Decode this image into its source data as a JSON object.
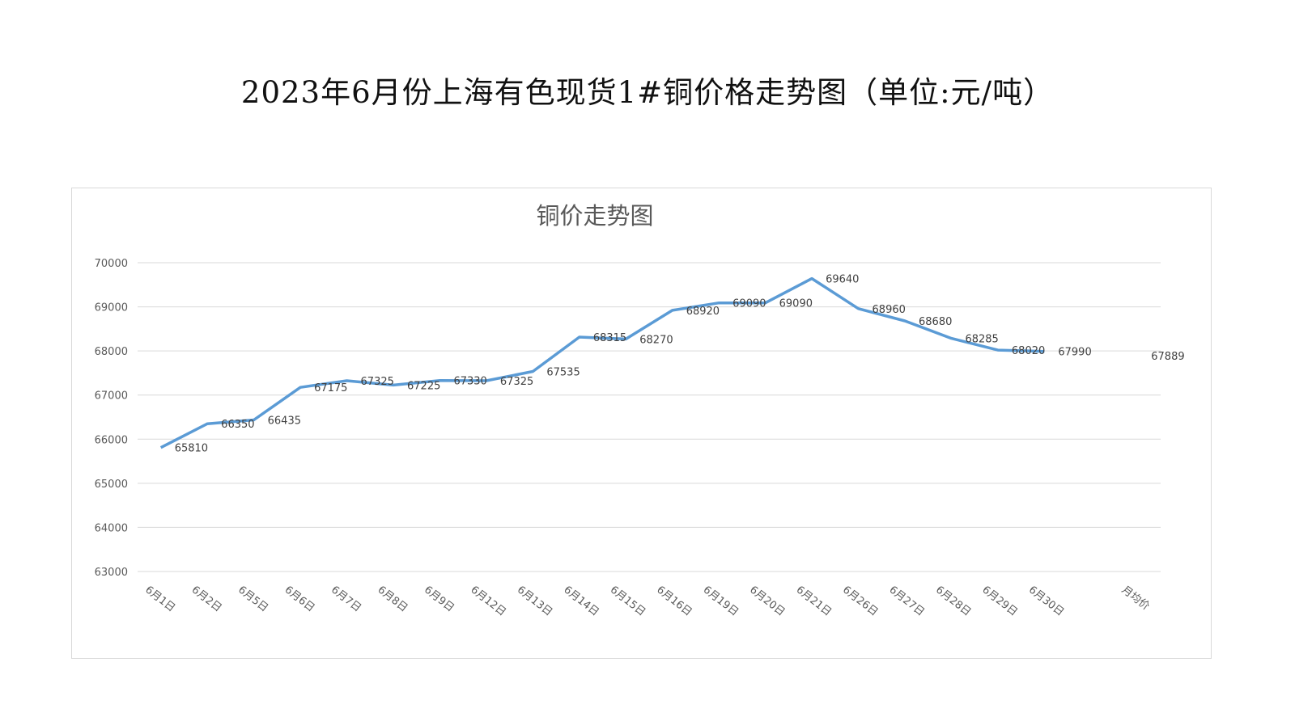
{
  "page_title": "2023年6月份上海有色现货1#铜价格走势图（单位:元/吨）",
  "colors": {
    "line": "#5b9bd5",
    "grid": "#d9d9d9",
    "text": "#595959"
  },
  "chart_data": {
    "type": "line",
    "title": "铜价走势图",
    "xlabel": "",
    "ylabel": "",
    "ylim": [
      63000,
      70000
    ],
    "yticks": [
      63000,
      64000,
      65000,
      66000,
      67000,
      68000,
      69000,
      70000
    ],
    "grid": true,
    "legend": "none",
    "categories": [
      "6月1日",
      "6月2日",
      "6月5日",
      "6月6日",
      "6月7日",
      "6月8日",
      "6月9日",
      "6月12日",
      "6月13日",
      "6月14日",
      "6月15日",
      "6月16日",
      "6月19日",
      "6月20日",
      "6月21日",
      "6月26日",
      "6月27日",
      "6月28日",
      "6月29日",
      "6月30日",
      "",
      "月均价"
    ],
    "series": [
      {
        "values": [
          65810,
          66350,
          66435,
          67175,
          67325,
          67225,
          67330,
          67325,
          67535,
          68315,
          68270,
          68920,
          69090,
          69090,
          69640,
          68960,
          68680,
          68285,
          68020,
          67990,
          null,
          67889
        ]
      }
    ]
  }
}
